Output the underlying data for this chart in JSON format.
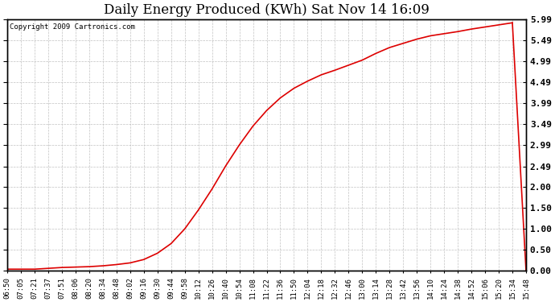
{
  "title": "Daily Energy Produced (KWh) Sat Nov 14 16:09",
  "copyright": "Copyright 2009 Cartronics.com",
  "line_color": "#dd0000",
  "background_color": "#ffffff",
  "grid_color": "#bbbbbb",
  "yticks": [
    0.0,
    0.5,
    1.0,
    1.5,
    2.0,
    2.49,
    2.99,
    3.49,
    3.99,
    4.49,
    4.99,
    5.49,
    5.99
  ],
  "ytick_labels": [
    "0.00",
    "0.50",
    "1.00",
    "1.50",
    "2.00",
    "2.49",
    "2.99",
    "3.49",
    "3.99",
    "4.49",
    "4.99",
    "5.49",
    "5.99"
  ],
  "ylim": [
    0.0,
    5.99
  ],
  "xtick_labels": [
    "06:50",
    "07:05",
    "07:21",
    "07:37",
    "07:51",
    "08:06",
    "08:20",
    "08:34",
    "08:48",
    "09:02",
    "09:16",
    "09:30",
    "09:44",
    "09:58",
    "10:12",
    "10:26",
    "10:40",
    "10:54",
    "11:08",
    "11:22",
    "11:36",
    "11:50",
    "12:04",
    "12:18",
    "12:32",
    "12:46",
    "13:00",
    "13:14",
    "13:28",
    "13:42",
    "13:56",
    "14:10",
    "14:24",
    "14:38",
    "14:52",
    "15:06",
    "15:20",
    "15:34",
    "15:48"
  ],
  "y_values": [
    0.04,
    0.04,
    0.04,
    0.06,
    0.08,
    0.09,
    0.1,
    0.12,
    0.15,
    0.19,
    0.27,
    0.42,
    0.65,
    1.0,
    1.45,
    1.95,
    2.5,
    3.0,
    3.45,
    3.82,
    4.12,
    4.35,
    4.52,
    4.67,
    4.78,
    4.9,
    5.02,
    5.18,
    5.32,
    5.42,
    5.52,
    5.6,
    5.65,
    5.7,
    5.76,
    5.81,
    5.86,
    5.91,
    0.0
  ],
  "figwidth": 6.9,
  "figheight": 3.75,
  "dpi": 100
}
